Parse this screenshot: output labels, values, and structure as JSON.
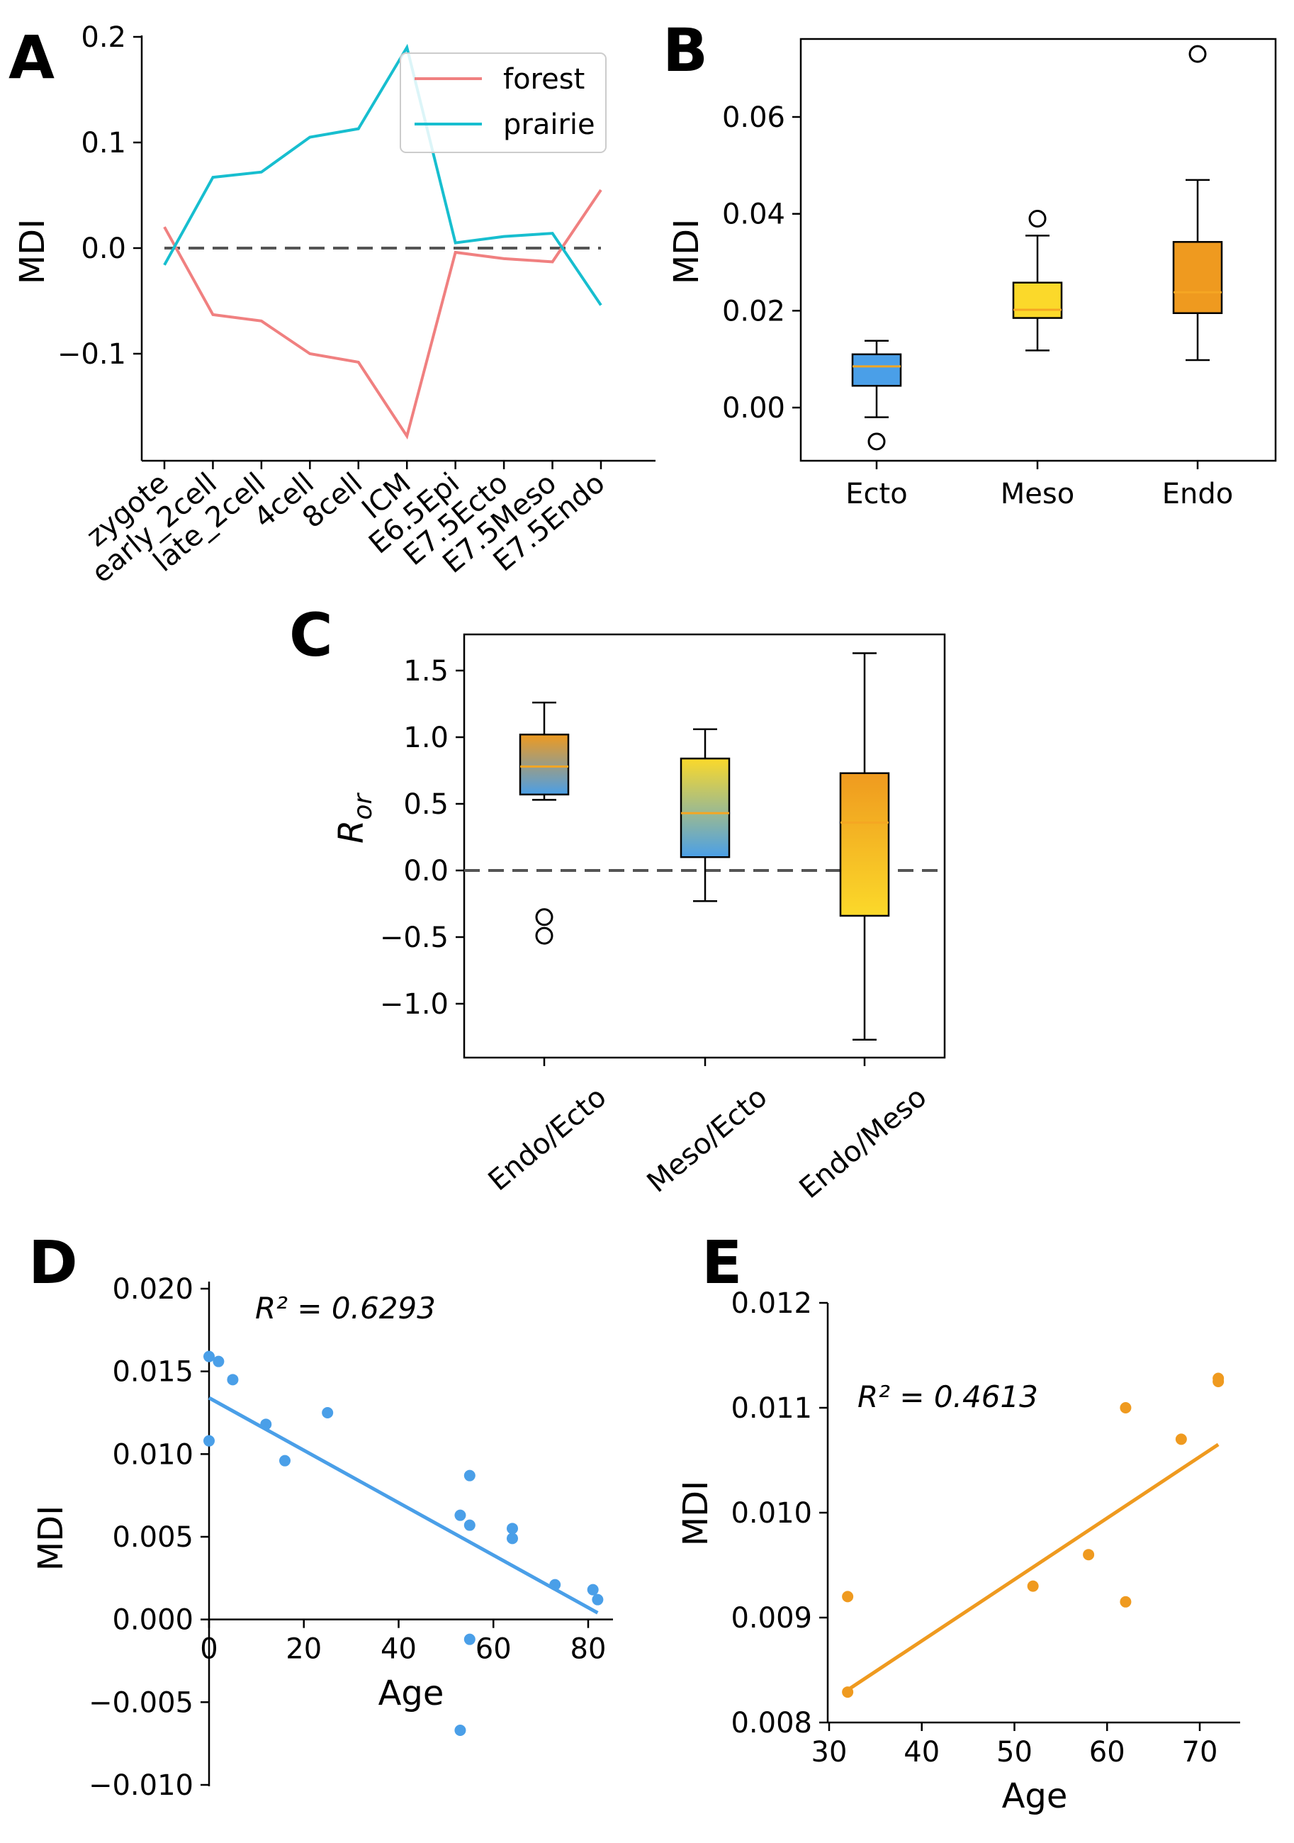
{
  "colors": {
    "forest": "#f08080",
    "prairie": "#17becf",
    "ecto": "#4a9fe8",
    "meso": "#fbd92a",
    "endo": "#ef9a1f",
    "median": "#f5a623",
    "scatterD": "#4a9fe8",
    "scatterE": "#ef9a1f"
  },
  "chart_data": [
    {
      "id": "A",
      "type": "line",
      "panel_label": "A",
      "ylabel": "MDI",
      "categories": [
        "zygote",
        "early_2cell",
        "late_2cell",
        "4cell",
        "8cell",
        "ICM",
        "E6.5Epi",
        "E7.5Ecto",
        "E7.5Meso",
        "E7.5Endo"
      ],
      "ylim": [
        -0.2,
        0.2
      ],
      "yticks": [
        -0.1,
        0.0,
        0.1,
        0.2
      ],
      "ytick_labels": [
        "−0.1",
        "0.0",
        "0.1",
        "0.2"
      ],
      "reference_line": 0.0,
      "legend_position": "top-right",
      "series": [
        {
          "name": "forest",
          "color_key": "forest",
          "values": [
            0.02,
            -0.063,
            -0.069,
            -0.1,
            -0.108,
            -0.178,
            -0.004,
            -0.01,
            -0.013,
            0.055
          ]
        },
        {
          "name": "prairie",
          "color_key": "prairie",
          "values": [
            -0.016,
            0.067,
            0.072,
            0.105,
            0.113,
            0.19,
            0.005,
            0.011,
            0.014,
            -0.054
          ]
        }
      ]
    },
    {
      "id": "B",
      "type": "box",
      "panel_label": "B",
      "ylabel": "MDI",
      "categories": [
        "Ecto",
        "Meso",
        "Endo"
      ],
      "ylim": [
        -0.01,
        0.077
      ],
      "yticks": [
        0.0,
        0.02,
        0.04,
        0.06
      ],
      "ytick_labels": [
        "0.00",
        "0.02",
        "0.04",
        "0.06"
      ],
      "boxes": [
        {
          "category": "Ecto",
          "color_key": "ecto",
          "whisker_low": -0.002,
          "q1": 0.0045,
          "median": 0.0085,
          "q3": 0.011,
          "whisker_high": 0.0138,
          "fliers": [
            -0.007
          ]
        },
        {
          "category": "Meso",
          "color_key": "meso",
          "whisker_low": 0.0118,
          "q1": 0.0185,
          "median": 0.0202,
          "q3": 0.0258,
          "whisker_high": 0.0355,
          "fliers": [
            0.039
          ]
        },
        {
          "category": "Endo",
          "color_key": "endo",
          "whisker_low": 0.0098,
          "q1": 0.0195,
          "median": 0.0238,
          "q3": 0.0342,
          "whisker_high": 0.047,
          "fliers": [
            0.073
          ]
        }
      ]
    },
    {
      "id": "C",
      "type": "box",
      "panel_label": "C",
      "ylabel": "R",
      "ylabel_sub": "or",
      "categories": [
        "Endo/Ecto",
        "Meso/Ecto",
        "Endo/Meso"
      ],
      "ylim": [
        -1.4,
        1.8
      ],
      "yticks": [
        -1.0,
        -0.5,
        0.0,
        0.5,
        1.0,
        1.5
      ],
      "ytick_labels": [
        "−1.0",
        "−0.5",
        "0.0",
        "0.5",
        "1.0",
        "1.5"
      ],
      "reference_line": 0.0,
      "boxes": [
        {
          "category": "Endo/Ecto",
          "gradient": [
            "endo",
            "ecto"
          ],
          "whisker_low": 0.53,
          "q1": 0.57,
          "median": 0.78,
          "q3": 1.02,
          "whisker_high": 1.26,
          "fliers": [
            -0.35,
            -0.49
          ]
        },
        {
          "category": "Meso/Ecto",
          "gradient": [
            "meso",
            "ecto"
          ],
          "whisker_low": -0.23,
          "q1": 0.1,
          "median": 0.43,
          "q3": 0.84,
          "whisker_high": 1.06,
          "fliers": []
        },
        {
          "category": "Endo/Meso",
          "gradient": [
            "endo",
            "meso"
          ],
          "whisker_low": -1.27,
          "q1": -0.34,
          "median": 0.36,
          "q3": 0.73,
          "whisker_high": 1.63,
          "fliers": []
        }
      ]
    },
    {
      "id": "D",
      "type": "scatter",
      "panel_label": "D",
      "xlabel": "Age",
      "ylabel": "MDI",
      "xlim": [
        0,
        85
      ],
      "ylim": [
        -0.01,
        0.02
      ],
      "xticks": [
        0,
        20,
        40,
        60,
        80
      ],
      "xtick_labels": [
        "0",
        "20",
        "40",
        "60",
        "80"
      ],
      "yticks": [
        -0.01,
        -0.005,
        0.0,
        0.005,
        0.01,
        0.015,
        0.02
      ],
      "ytick_labels": [
        "−0.010",
        "−0.005",
        "0.000",
        "0.005",
        "0.010",
        "0.015",
        "0.020"
      ],
      "annotation": "R² = 0.6293",
      "color_key": "scatterD",
      "points": [
        [
          0,
          0.0159
        ],
        [
          0,
          0.0108
        ],
        [
          2,
          0.0156
        ],
        [
          5,
          0.0145
        ],
        [
          12,
          0.0118
        ],
        [
          16,
          0.0096
        ],
        [
          25,
          0.0125
        ],
        [
          53,
          0.0063
        ],
        [
          55,
          0.0087
        ],
        [
          55,
          0.0057
        ],
        [
          55,
          -0.0012
        ],
        [
          53,
          -0.0067
        ],
        [
          64,
          0.0055
        ],
        [
          64,
          0.0049
        ],
        [
          73,
          0.0021
        ],
        [
          81,
          0.0018
        ],
        [
          82,
          0.0012
        ]
      ],
      "fit": {
        "x": [
          0,
          82
        ],
        "y": [
          0.0134,
          0.0004
        ]
      }
    },
    {
      "id": "E",
      "type": "scatter",
      "panel_label": "E",
      "xlabel": "Age",
      "ylabel": "MDI",
      "xlim": [
        30,
        75
      ],
      "ylim": [
        0.008,
        0.012
      ],
      "xticks": [
        30,
        40,
        50,
        60,
        70
      ],
      "xtick_labels": [
        "30",
        "40",
        "50",
        "60",
        "70"
      ],
      "yticks": [
        0.008,
        0.009,
        0.01,
        0.011,
        0.012
      ],
      "ytick_labels": [
        "0.008",
        "0.009",
        "0.010",
        "0.011",
        "0.012"
      ],
      "annotation": "R² = 0.4613",
      "color_key": "scatterE",
      "points": [
        [
          32,
          0.0092
        ],
        [
          32,
          0.00829
        ],
        [
          52,
          0.0093
        ],
        [
          58,
          0.0096
        ],
        [
          62,
          0.011
        ],
        [
          62,
          0.00915
        ],
        [
          68,
          0.0107
        ],
        [
          72,
          0.01128
        ],
        [
          72,
          0.01125
        ]
      ],
      "fit": {
        "x": [
          32,
          72
        ],
        "y": [
          0.00831,
          0.01065
        ]
      }
    }
  ]
}
